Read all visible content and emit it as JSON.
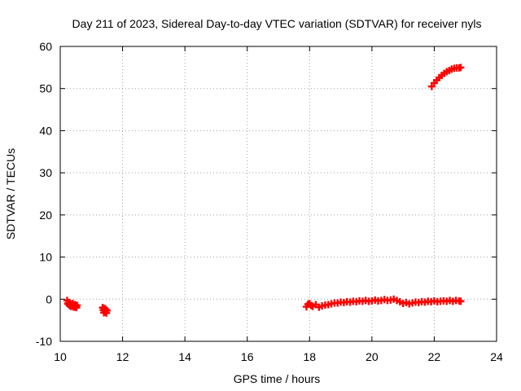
{
  "chart_data": {
    "type": "scatter",
    "title": "Day 211 of 2023, Sidereal Day-to-day VTEC variation (SDTVAR) for receiver nyls",
    "xlabel": "GPS time / hours",
    "ylabel": "SDTVAR / TECUs",
    "xlim": [
      10,
      24
    ],
    "ylim": [
      -10,
      60
    ],
    "xticks": [
      10,
      12,
      14,
      16,
      18,
      20,
      22,
      24
    ],
    "yticks": [
      -10,
      0,
      10,
      20,
      30,
      40,
      50,
      60
    ],
    "xtick_labels": [
      "10",
      "12",
      "14",
      "16",
      "18",
      "20",
      "22",
      "24"
    ],
    "ytick_labels": [
      "-10",
      "0",
      "10",
      "20",
      "30",
      "40",
      "50",
      "60"
    ],
    "grid": true,
    "color": "#ff0000",
    "marker": "plus",
    "series": [
      {
        "name": "SDTVAR",
        "points": [
          [
            10.22,
            -0.3
          ],
          [
            10.24,
            -1.0
          ],
          [
            10.26,
            -1.2
          ],
          [
            10.28,
            -0.8
          ],
          [
            10.3,
            -1.5
          ],
          [
            10.32,
            -1.1
          ],
          [
            10.34,
            -1.7
          ],
          [
            10.36,
            -1.3
          ],
          [
            10.38,
            -1.6
          ],
          [
            10.4,
            -1.0
          ],
          [
            10.42,
            -1.8
          ],
          [
            10.44,
            -1.4
          ],
          [
            10.46,
            -1.9
          ],
          [
            10.48,
            -1.3
          ],
          [
            10.5,
            -1.6
          ],
          [
            10.52,
            -2.0
          ],
          [
            10.54,
            -1.5
          ],
          [
            11.36,
            -2.0
          ],
          [
            11.38,
            -2.6
          ],
          [
            11.4,
            -3.2
          ],
          [
            11.42,
            -2.2
          ],
          [
            11.44,
            -3.0
          ],
          [
            11.46,
            -2.4
          ],
          [
            11.48,
            -3.3
          ],
          [
            11.5,
            -2.7
          ],
          [
            17.9,
            -1.8
          ],
          [
            17.95,
            -1.2
          ],
          [
            18.0,
            -1.0
          ],
          [
            18.05,
            -1.5
          ],
          [
            18.1,
            -1.7
          ],
          [
            18.2,
            -1.3
          ],
          [
            18.3,
            -1.9
          ],
          [
            18.4,
            -1.6
          ],
          [
            18.5,
            -1.4
          ],
          [
            18.6,
            -1.3
          ],
          [
            18.7,
            -1.1
          ],
          [
            18.8,
            -0.9
          ],
          [
            18.9,
            -0.9
          ],
          [
            19.0,
            -0.7
          ],
          [
            19.1,
            -0.8
          ],
          [
            19.2,
            -0.6
          ],
          [
            19.3,
            -0.7
          ],
          [
            19.4,
            -0.5
          ],
          [
            19.5,
            -0.6
          ],
          [
            19.6,
            -0.4
          ],
          [
            19.7,
            -0.5
          ],
          [
            19.8,
            -0.3
          ],
          [
            19.9,
            -0.5
          ],
          [
            20.0,
            -0.4
          ],
          [
            20.1,
            -0.2
          ],
          [
            20.2,
            -0.4
          ],
          [
            20.3,
            -0.3
          ],
          [
            20.4,
            -0.1
          ],
          [
            20.5,
            -0.3
          ],
          [
            20.6,
            -0.2
          ],
          [
            20.7,
            0.0
          ],
          [
            20.8,
            -0.3
          ],
          [
            20.9,
            -0.6
          ],
          [
            21.0,
            -1.0
          ],
          [
            21.1,
            -0.8
          ],
          [
            21.2,
            -1.1
          ],
          [
            21.3,
            -0.9
          ],
          [
            21.4,
            -0.7
          ],
          [
            21.5,
            -0.8
          ],
          [
            21.6,
            -0.6
          ],
          [
            21.7,
            -0.7
          ],
          [
            21.8,
            -0.5
          ],
          [
            21.9,
            -0.6
          ],
          [
            22.0,
            -0.4
          ],
          [
            22.1,
            -0.6
          ],
          [
            22.2,
            -0.5
          ],
          [
            22.3,
            -0.4
          ],
          [
            22.4,
            -0.5
          ],
          [
            22.5,
            -0.3
          ],
          [
            22.6,
            -0.5
          ],
          [
            22.7,
            -0.3
          ],
          [
            22.8,
            -0.4
          ],
          [
            22.85,
            -0.5
          ],
          [
            21.92,
            50.5
          ],
          [
            22.0,
            51.3
          ],
          [
            22.08,
            52.0
          ],
          [
            22.16,
            52.6
          ],
          [
            22.24,
            53.1
          ],
          [
            22.32,
            53.6
          ],
          [
            22.4,
            54.0
          ],
          [
            22.48,
            54.3
          ],
          [
            22.56,
            54.6
          ],
          [
            22.64,
            54.8
          ],
          [
            22.72,
            54.9
          ],
          [
            22.8,
            54.9
          ],
          [
            22.85,
            55.0
          ]
        ]
      }
    ]
  }
}
